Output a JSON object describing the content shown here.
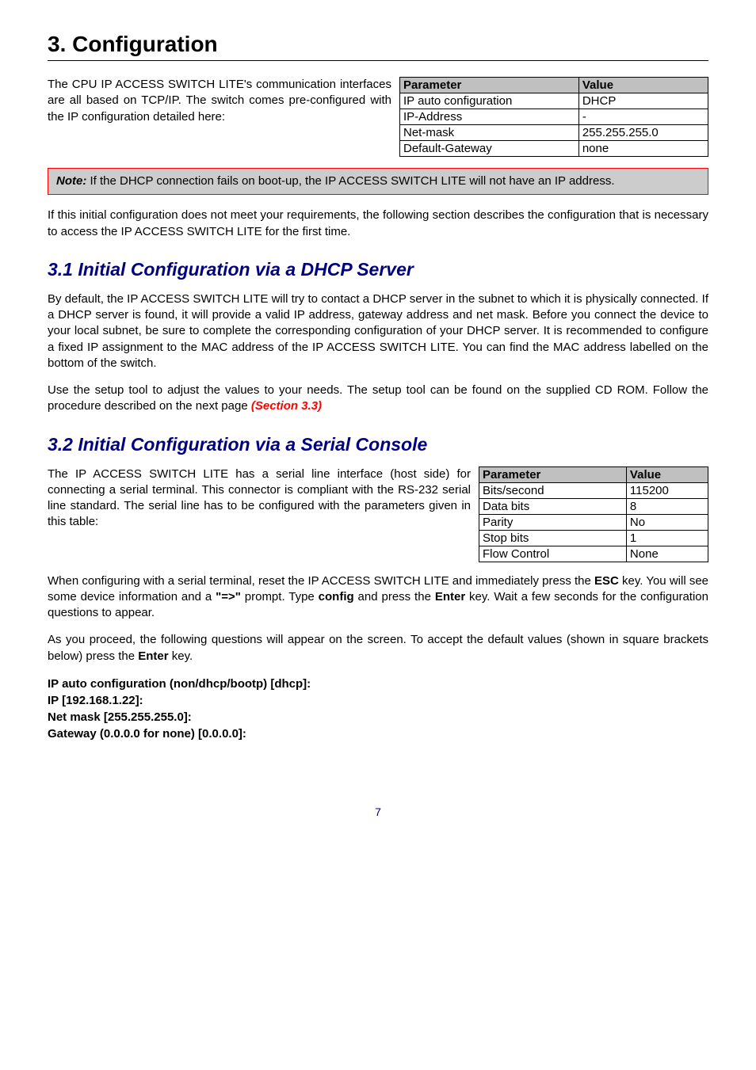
{
  "title": "3. Configuration",
  "intro_text": "The CPU IP ACCESS SWITCH LITE's communication interfaces are all based on TCP/IP. The switch comes pre-configured with the IP configuration detailed here:",
  "table_top": {
    "headers": [
      "Parameter",
      "Value"
    ],
    "rows": [
      [
        "IP auto configuration",
        "DHCP"
      ],
      [
        "IP-Address",
        "-"
      ],
      [
        "Net-mask",
        "255.255.255.0"
      ],
      [
        "Default-Gateway",
        "none"
      ]
    ]
  },
  "note": {
    "label": "Note:",
    "text": " If the DHCP connection fails on boot-up, the IP ACCESS SWITCH LITE will not have an IP address."
  },
  "para_after_note": "If this initial configuration does not meet your requirements, the following section describes the configuration that is necessary to access the IP ACCESS SWITCH LITE for the first time.",
  "section_3_1": {
    "heading": "3.1 Initial Configuration via a DHCP Server",
    "para1": "By default, the IP ACCESS SWITCH LITE will try to contact a DHCP server in the subnet to which it is physically connected. If a DHCP server is found, it will provide a valid IP address, gateway address and net mask. Before you connect the device to your local subnet, be sure to complete the corresponding configuration of your DHCP server. It is recommended to configure a fixed IP assignment to the MAC address of the IP ACCESS SWITCH LITE. You can find the MAC address labelled on the bottom of the switch.",
    "para2_a": "Use the setup tool to adjust the values to your needs. The setup tool can be found on the supplied CD ROM. Follow the procedure described on the next page ",
    "para2_link": "(Section 3.3)"
  },
  "section_3_2": {
    "heading": "3.2 Initial Configuration via a Serial Console",
    "intro_text": "The IP ACCESS SWITCH LITE has a serial line interface (host side) for connecting a serial terminal. This connector is compliant with the RS-232 serial line standard. The serial line has to be configured with the parameters given in this table:",
    "table": {
      "headers": [
        "Parameter",
        "Value"
      ],
      "rows": [
        [
          "Bits/second",
          "115200"
        ],
        [
          "Data bits",
          "8"
        ],
        [
          "Parity",
          "No"
        ],
        [
          "Stop bits",
          "1"
        ],
        [
          "Flow Control",
          "None"
        ]
      ]
    },
    "para_after_a": "When configuring with a serial terminal, reset the IP ACCESS SWITCH LITE and immediately press the ",
    "esc": "ESC",
    "para_after_b": " key. You will see some device information and a ",
    "prompt": "\"=>\"",
    "para_after_c": " prompt. Type ",
    "config_word": "config",
    "para_after_d": " and press the ",
    "enter": "Enter",
    "para_after_e": " key. Wait a few seconds for the configuration questions to appear.",
    "para_proceed_a": "As you proceed, the following questions will appear on the screen. To accept the default values (shown in square brackets below) press the ",
    "para_proceed_b": " key.",
    "config_lines": {
      "l1": "IP auto configuration (non/dhcp/bootp) [dhcp]:",
      "l2": "IP [192.168.1.22]:",
      "l3": "Net mask [255.255.255.0]:",
      "l4": "Gateway (0.0.0.0 for none) [0.0.0.0]:"
    }
  },
  "page_number": "7"
}
